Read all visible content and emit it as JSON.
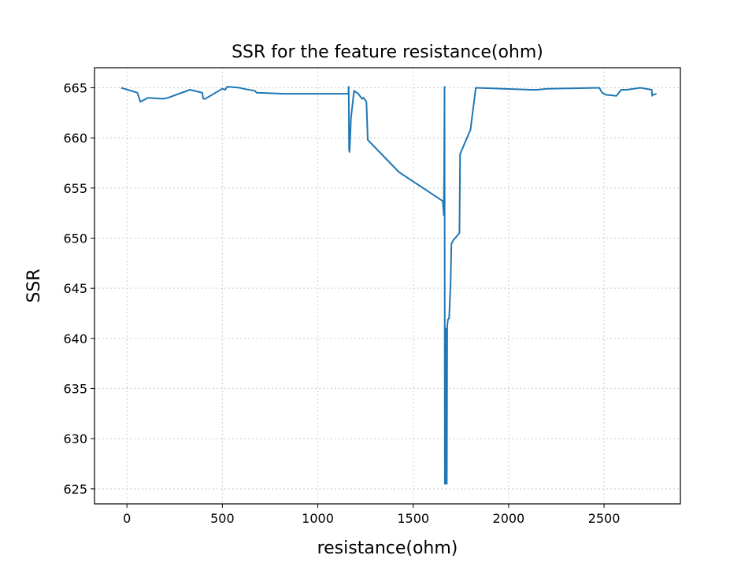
{
  "chart_data": {
    "type": "line",
    "title": "SSR for the feature resistance(ohm)",
    "xlabel": "resistance(ohm)",
    "ylabel": "SSR",
    "xlim": [
      -170,
      2900
    ],
    "ylim": [
      623.5,
      667
    ],
    "xticks": [
      0,
      500,
      1000,
      1500,
      2000,
      2500
    ],
    "yticks": [
      625,
      630,
      635,
      640,
      645,
      650,
      655,
      660,
      665
    ],
    "grid": true,
    "line_color": "#1f77b4",
    "series": [
      {
        "x": [
          -30,
          55,
          70,
          110,
          190,
          215,
          330,
          395,
          400,
          410,
          500,
          515,
          525,
          535,
          590,
          610,
          670,
          680,
          830,
          1160,
          1162,
          1164,
          1166,
          1168,
          1172,
          1174,
          1190,
          1212,
          1232,
          1240,
          1255,
          1262,
          1425,
          1655,
          1660,
          1662,
          1664,
          1666,
          1668,
          1670,
          1672,
          1676,
          1678,
          1682,
          1688,
          1696,
          1700,
          1710,
          1742,
          1746,
          1800,
          1828,
          2115,
          2150,
          2200,
          2475,
          2490,
          2510,
          2565,
          2590,
          2620,
          2690,
          2750,
          2752,
          2756,
          2775
        ],
        "y": [
          665.0,
          664.5,
          663.6,
          664.0,
          663.9,
          664.0,
          664.8,
          664.5,
          663.9,
          663.9,
          664.9,
          664.8,
          665.1,
          665.1,
          665.0,
          664.9,
          664.7,
          664.5,
          664.4,
          664.4,
          665.1,
          658.8,
          658.6,
          659.3,
          661.0,
          662.0,
          664.7,
          664.4,
          663.9,
          664.0,
          663.6,
          659.8,
          656.6,
          653.7,
          652.3,
          656.8,
          665.1,
          625.5,
          625.5,
          641.0,
          625.8,
          625.5,
          641.2,
          641.9,
          642.0,
          645.5,
          649.4,
          649.8,
          650.5,
          658.4,
          660.8,
          665.0,
          664.8,
          664.8,
          664.9,
          665.0,
          664.5,
          664.3,
          664.2,
          664.8,
          664.8,
          665.0,
          664.8,
          664.2,
          664.3,
          664.4
        ]
      }
    ]
  }
}
